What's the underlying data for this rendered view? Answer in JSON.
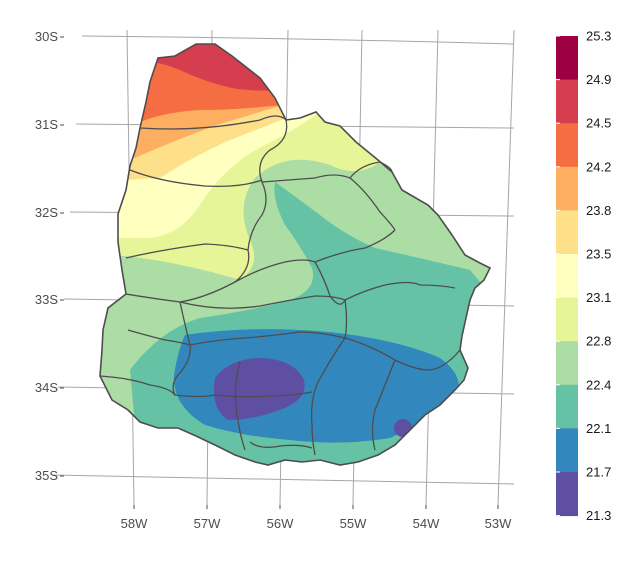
{
  "axes": {
    "y_ticks": [
      "30S",
      "31S",
      "32S",
      "33S",
      "34S",
      "35S"
    ],
    "x_ticks": [
      "58W",
      "57W",
      "56W",
      "55W",
      "54W",
      "53W"
    ]
  },
  "legend": {
    "breaks": [
      "25.3",
      "24.9",
      "24.5",
      "24.2",
      "23.8",
      "23.5",
      "23.1",
      "22.8",
      "22.4",
      "22.1",
      "21.7",
      "21.3"
    ],
    "colors": [
      "#9e0142",
      "#d53e4f",
      "#f46d43",
      "#fdae61",
      "#fee08b",
      "#ffffbf",
      "#e6f598",
      "#abdda4",
      "#66c2a5",
      "#3288bd",
      "#5e4fa2"
    ]
  },
  "chart_data": {
    "type": "heatmap",
    "x_ticks": [
      "58W",
      "57W",
      "56W",
      "55W",
      "54W",
      "53W"
    ],
    "y_ticks": [
      "30S",
      "31S",
      "32S",
      "33S",
      "34S",
      "35S"
    ],
    "color_scale_breaks": [
      25.3,
      24.9,
      24.5,
      24.2,
      23.8,
      23.5,
      23.1,
      22.8,
      22.4,
      22.1,
      21.7,
      21.3
    ],
    "zones": [
      {
        "region": "far north tip",
        "range": [
          24.9,
          25.3
        ]
      },
      {
        "region": "north",
        "range": [
          24.2,
          24.9
        ]
      },
      {
        "region": "north-west",
        "range": [
          23.5,
          24.2
        ]
      },
      {
        "region": "west",
        "range": [
          22.8,
          23.5
        ]
      },
      {
        "region": "center / east",
        "range": [
          22.1,
          22.8
        ]
      },
      {
        "region": "south",
        "range": [
          21.7,
          22.1
        ]
      },
      {
        "region": "south-central core",
        "range": [
          21.3,
          21.7
        ]
      }
    ]
  }
}
